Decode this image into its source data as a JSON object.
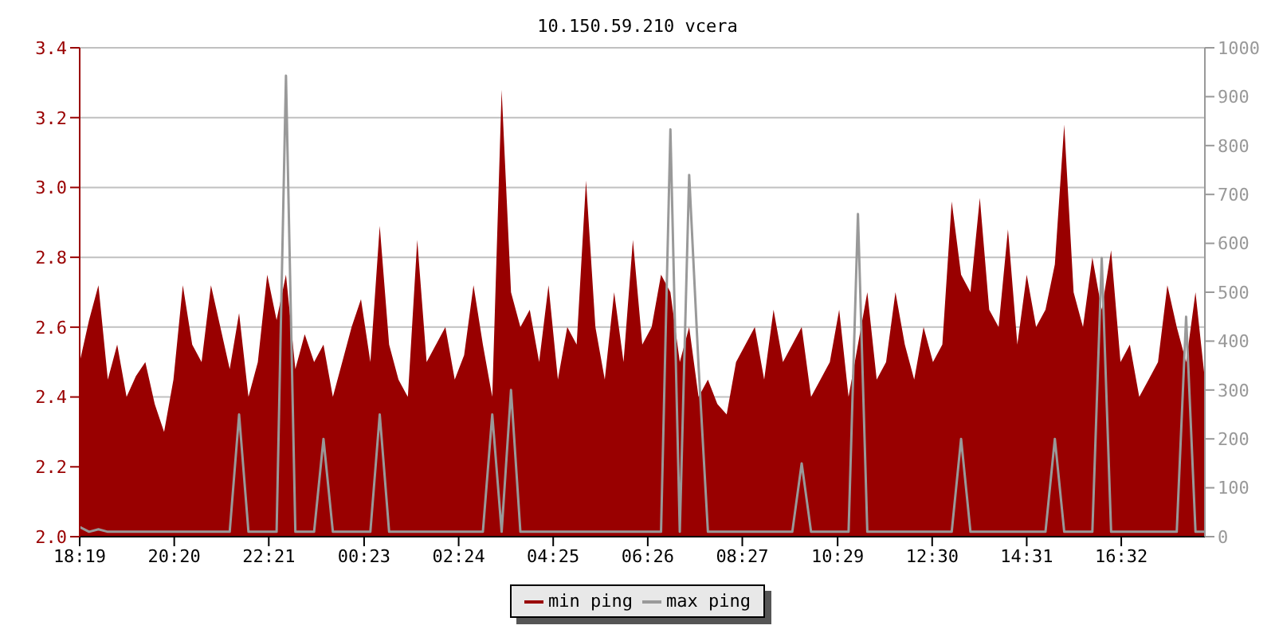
{
  "chart_data": {
    "type": "area",
    "title": "10.150.59.210 vcera",
    "x": [
      "--01-01T18:19",
      "--01-01T18:31",
      "--01-01T18:43",
      "--01-01T18:55",
      "--01-01T19:07",
      "--01-01T19:19",
      "--01-01T19:31",
      "--01-01T19:43",
      "--01-01T19:55",
      "--01-01T20:07",
      "--01-01T20:19",
      "--01-01T20:31",
      "--01-01T20:43",
      "--01-01T20:55",
      "--01-01T21:07",
      "--01-01T21:19",
      "--01-01T21:31",
      "--01-01T21:43",
      "--01-01T21:55",
      "--01-01T22:07",
      "--01-01T22:19",
      "--01-01T22:31",
      "--01-01T22:43",
      "--01-01T22:55",
      "--01-01T23:07",
      "--01-01T23:19",
      "--01-01T23:31",
      "--01-01T23:43",
      "--01-01T23:55",
      "--01-02T00:07",
      "--01-02T00:19",
      "--01-02T00:31",
      "--01-02T00:43",
      "--01-02T00:55",
      "--01-02T01:07",
      "--01-02T01:19",
      "--01-02T01:31",
      "--01-02T01:43",
      "--01-02T01:55",
      "--01-02T02:07",
      "--01-02T02:19",
      "--01-02T02:31",
      "--01-02T02:43",
      "--01-02T02:55",
      "--01-02T03:07",
      "--01-02T03:19",
      "--01-02T03:31",
      "--01-02T03:43",
      "--01-02T03:55",
      "--01-02T04:07",
      "--01-02T04:19",
      "--01-02T04:31",
      "--01-02T04:43",
      "--01-02T04:55",
      "--01-02T05:07",
      "--01-02T05:19",
      "--01-02T05:31",
      "--01-02T05:43",
      "--01-02T05:55",
      "--01-02T06:07",
      "--01-02T06:19",
      "--01-02T06:31",
      "--01-02T06:43",
      "--01-02T06:55",
      "--01-02T07:07",
      "--01-02T07:19",
      "--01-02T07:31",
      "--01-02T07:43",
      "--01-02T07:55",
      "--01-02T08:07",
      "--01-02T08:19",
      "--01-02T08:31",
      "--01-02T08:43",
      "--01-02T08:55",
      "--01-02T09:07",
      "--01-02T09:19",
      "--01-02T09:31",
      "--01-02T09:43",
      "--01-02T09:55",
      "--01-02T10:07",
      "--01-02T10:19",
      "--01-02T10:31",
      "--01-02T10:43",
      "--01-02T10:55",
      "--01-02T11:07",
      "--01-02T11:19",
      "--01-02T11:31",
      "--01-02T11:43",
      "--01-02T11:55",
      "--01-02T12:07",
      "--01-02T12:19",
      "--01-02T12:31",
      "--01-02T12:43",
      "--01-02T12:55",
      "--01-02T13:07",
      "--01-02T13:19",
      "--01-02T13:31",
      "--01-02T13:43",
      "--01-02T13:55",
      "--01-02T14:07",
      "--01-02T14:19",
      "--01-02T14:31",
      "--01-02T14:43",
      "--01-02T14:55",
      "--01-02T15:07",
      "--01-02T15:19",
      "--01-02T15:31",
      "--01-02T15:43",
      "--01-02T15:55",
      "--01-02T16:07",
      "--01-02T16:19",
      "--01-02T16:31",
      "--01-02T16:43",
      "--01-02T16:55",
      "--01-02T17:07",
      "--01-02T17:19",
      "--01-02T17:31",
      "--01-02T17:43",
      "--01-02T17:55",
      "--01-02T18:07",
      "--01-02T18:19"
    ],
    "series": [
      {
        "name": "min ping",
        "color": "#990000",
        "values": [
          2.5,
          2.62,
          2.72,
          2.45,
          2.55,
          2.4,
          2.46,
          2.5,
          2.38,
          2.3,
          2.45,
          2.72,
          2.55,
          2.5,
          2.72,
          2.6,
          2.48,
          2.64,
          2.4,
          2.5,
          2.75,
          2.62,
          2.75,
          2.48,
          2.58,
          2.5,
          2.55,
          2.4,
          2.5,
          2.6,
          2.68,
          2.5,
          2.89,
          2.55,
          2.45,
          2.4,
          2.85,
          2.5,
          2.55,
          2.6,
          2.45,
          2.52,
          2.72,
          2.55,
          2.4,
          3.28,
          2.7,
          2.6,
          2.65,
          2.5,
          2.72,
          2.45,
          2.6,
          2.55,
          3.02,
          2.6,
          2.45,
          2.7,
          2.5,
          2.85,
          2.55,
          2.6,
          2.75,
          2.7,
          2.5,
          2.6,
          2.4,
          2.45,
          2.38,
          2.35,
          2.5,
          2.55,
          2.6,
          2.45,
          2.65,
          2.5,
          2.55,
          2.6,
          2.4,
          2.45,
          2.5,
          2.65,
          2.4,
          2.55,
          2.7,
          2.45,
          2.5,
          2.7,
          2.55,
          2.45,
          2.6,
          2.5,
          2.55,
          2.96,
          2.75,
          2.7,
          2.97,
          2.65,
          2.6,
          2.88,
          2.55,
          2.75,
          2.6,
          2.65,
          2.78,
          3.18,
          2.7,
          2.6,
          2.8,
          2.65,
          2.82,
          2.5,
          2.55,
          2.4,
          2.45,
          2.5,
          2.72,
          2.6,
          2.5,
          2.7,
          2.45
        ]
      },
      {
        "name": "max ping",
        "type": "line",
        "color": "#999999",
        "axis": "y2",
        "values": [
          20,
          10,
          15,
          10,
          10,
          10,
          10,
          10,
          10,
          10,
          10,
          10,
          10,
          10,
          10,
          10,
          10,
          250,
          10,
          10,
          10,
          10,
          943,
          10,
          10,
          10,
          200,
          10,
          10,
          10,
          10,
          10,
          250,
          10,
          10,
          10,
          10,
          10,
          10,
          10,
          10,
          10,
          10,
          10,
          250,
          10,
          300,
          10,
          10,
          10,
          10,
          10,
          10,
          10,
          10,
          10,
          10,
          10,
          10,
          10,
          10,
          10,
          10,
          833,
          10,
          740,
          350,
          10,
          10,
          10,
          10,
          10,
          10,
          10,
          10,
          10,
          10,
          150,
          10,
          10,
          10,
          10,
          10,
          660,
          10,
          10,
          10,
          10,
          10,
          10,
          10,
          10,
          10,
          10,
          200,
          10,
          10,
          10,
          10,
          10,
          10,
          10,
          10,
          10,
          200,
          10,
          10,
          10,
          10,
          570,
          10,
          10,
          10,
          10,
          10,
          10,
          10,
          10,
          450,
          10,
          10
        ]
      }
    ],
    "xlim": [
      "--01-01T18:19",
      "--01-02T18:19"
    ],
    "xticks": [
      {
        "value": "--01-01T18:19",
        "label": "18:19"
      },
      {
        "value": "--01-01T20:20",
        "label": "20:20"
      },
      {
        "value": "--01-01T22:21",
        "label": "22:21"
      },
      {
        "value": "--01-02T00:23",
        "label": "00:23"
      },
      {
        "value": "--01-02T02:24",
        "label": "02:24"
      },
      {
        "value": "--01-02T04:25",
        "label": "04:25"
      },
      {
        "value": "--01-02T06:26",
        "label": "06:26"
      },
      {
        "value": "--01-02T08:27",
        "label": "08:27"
      },
      {
        "value": "--01-02T10:29",
        "label": "10:29"
      },
      {
        "value": "--01-02T12:30",
        "label": "12:30"
      },
      {
        "value": "--01-02T14:31",
        "label": "14:31"
      },
      {
        "value": "--01-02T16:32",
        "label": "16:32"
      }
    ],
    "ylim": [
      2.0,
      3.4
    ],
    "yticks": [
      {
        "value": 2.0,
        "label": "2.0"
      },
      {
        "value": 2.2,
        "label": "2.2"
      },
      {
        "value": 2.4,
        "label": "2.4"
      },
      {
        "value": 2.6,
        "label": "2.6"
      },
      {
        "value": 2.8,
        "label": "2.8"
      },
      {
        "value": 3.0,
        "label": "3.0"
      },
      {
        "value": 3.2,
        "label": "3.2"
      },
      {
        "value": 3.4,
        "label": "3.4"
      }
    ],
    "y2lim": [
      0,
      1000
    ],
    "y2ticks": [
      0,
      100,
      200,
      300,
      400,
      500,
      600,
      700,
      800,
      900,
      1000
    ],
    "grid": "y",
    "legend": "bottom"
  }
}
